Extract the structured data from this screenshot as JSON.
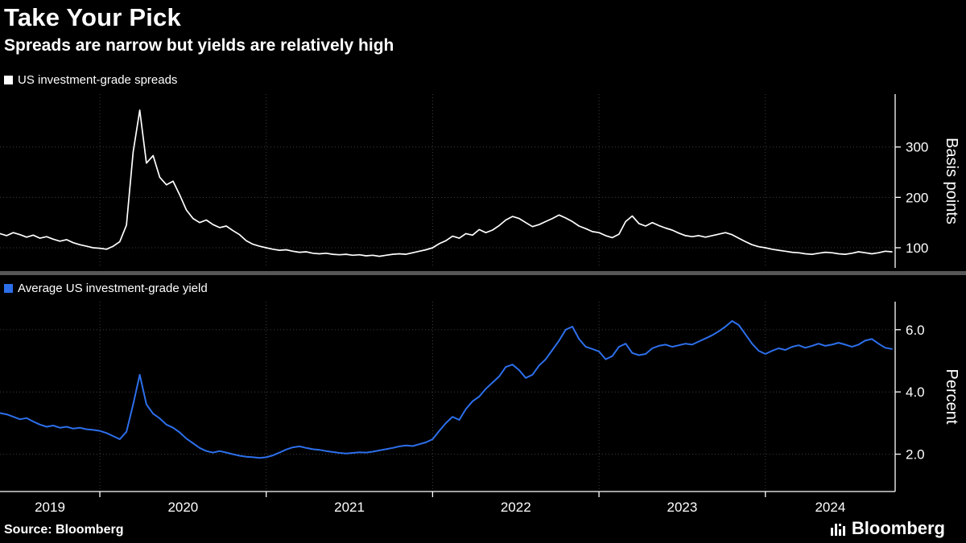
{
  "page": {
    "title": "Take Your Pick",
    "subtitle": "Spreads are narrow but yields are relatively high",
    "source": "Source: Bloomberg",
    "brand": "Bloomberg"
  },
  "colors": {
    "background": "#000000",
    "text": "#FFFFFF",
    "axis": "#FFFFFF",
    "grid": "#3E3E3E",
    "divider": "#575757",
    "spread_line": "#FFFFFF",
    "yield_line": "#2D6FEB"
  },
  "x_axis": {
    "domain": [
      2019.4,
      2024.78
    ],
    "gridline_years": [
      2020,
      2021,
      2022,
      2023,
      2024
    ],
    "labels": [
      "2019",
      "2020",
      "2021",
      "2022",
      "2023",
      "2024"
    ]
  },
  "chart_data": [
    {
      "type": "line",
      "name": "US investment-grade spreads",
      "color": "#FFFFFF",
      "ylabel": "Basis points",
      "yticks": [
        100,
        200,
        300
      ],
      "ytick_labels": [
        "100",
        "200",
        "300"
      ],
      "ylim": [
        60,
        405
      ],
      "legend_position": "top-left",
      "grid": true,
      "x_start": 2019.4,
      "x_step": 0.04,
      "values": [
        128,
        124,
        130,
        126,
        121,
        125,
        119,
        122,
        117,
        113,
        116,
        110,
        106,
        103,
        100,
        99,
        97,
        103,
        112,
        145,
        290,
        373,
        268,
        283,
        240,
        225,
        232,
        205,
        175,
        158,
        150,
        155,
        146,
        140,
        143,
        134,
        126,
        114,
        107,
        103,
        100,
        97,
        95,
        96,
        93,
        91,
        92,
        89,
        88,
        89,
        87,
        86,
        87,
        85,
        86,
        84,
        85,
        83,
        85,
        87,
        88,
        87,
        90,
        93,
        96,
        100,
        108,
        114,
        123,
        119,
        128,
        125,
        136,
        130,
        135,
        144,
        155,
        162,
        158,
        150,
        142,
        146,
        152,
        158,
        165,
        159,
        152,
        143,
        138,
        132,
        130,
        124,
        120,
        127,
        152,
        163,
        148,
        143,
        150,
        144,
        139,
        135,
        129,
        124,
        122,
        124,
        121,
        124,
        127,
        130,
        126,
        119,
        112,
        106,
        102,
        100,
        97,
        95,
        93,
        91,
        90,
        88,
        87,
        89,
        91,
        90,
        88,
        87,
        89,
        92,
        90,
        88,
        90,
        93,
        92
      ]
    },
    {
      "type": "line",
      "name": "Average US investment-grade yield",
      "color": "#2D6FEB",
      "ylabel": "Percent",
      "yticks": [
        2.0,
        4.0,
        6.0
      ],
      "ytick_labels": [
        "2.0",
        "4.0",
        "6.0"
      ],
      "ylim": [
        0.8,
        6.9
      ],
      "legend_position": "top-left",
      "grid": true,
      "x_start": 2019.4,
      "x_step": 0.04,
      "values": [
        3.32,
        3.28,
        3.2,
        3.12,
        3.16,
        3.05,
        2.95,
        2.88,
        2.92,
        2.85,
        2.88,
        2.82,
        2.85,
        2.8,
        2.78,
        2.75,
        2.68,
        2.58,
        2.48,
        2.72,
        3.6,
        4.55,
        3.6,
        3.3,
        3.15,
        2.95,
        2.85,
        2.7,
        2.5,
        2.35,
        2.2,
        2.1,
        2.05,
        2.1,
        2.05,
        2.0,
        1.95,
        1.92,
        1.9,
        1.88,
        1.9,
        1.96,
        2.05,
        2.15,
        2.22,
        2.25,
        2.2,
        2.16,
        2.14,
        2.1,
        2.07,
        2.04,
        2.02,
        2.04,
        2.06,
        2.05,
        2.08,
        2.12,
        2.16,
        2.2,
        2.25,
        2.28,
        2.26,
        2.32,
        2.38,
        2.48,
        2.75,
        3.0,
        3.2,
        3.1,
        3.45,
        3.7,
        3.85,
        4.1,
        4.3,
        4.5,
        4.8,
        4.88,
        4.7,
        4.45,
        4.55,
        4.85,
        5.05,
        5.35,
        5.65,
        6.0,
        6.1,
        5.7,
        5.45,
        5.38,
        5.3,
        5.05,
        5.15,
        5.45,
        5.55,
        5.25,
        5.18,
        5.22,
        5.4,
        5.48,
        5.52,
        5.45,
        5.5,
        5.55,
        5.52,
        5.62,
        5.72,
        5.82,
        5.95,
        6.1,
        6.28,
        6.15,
        5.85,
        5.55,
        5.32,
        5.22,
        5.32,
        5.4,
        5.35,
        5.45,
        5.5,
        5.42,
        5.48,
        5.55,
        5.48,
        5.52,
        5.58,
        5.52,
        5.45,
        5.52,
        5.65,
        5.7,
        5.55,
        5.42,
        5.38
      ]
    }
  ]
}
